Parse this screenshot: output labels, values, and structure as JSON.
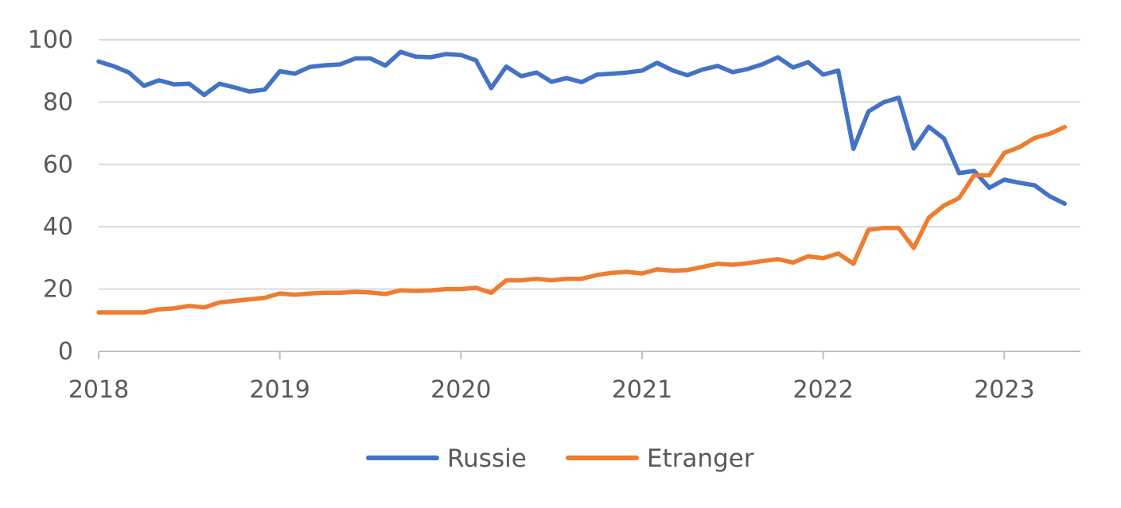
{
  "chart_data": {
    "type": "line",
    "title": "",
    "xlabel": "",
    "ylabel": "",
    "ylim": [
      0,
      100
    ],
    "xlim": [
      2018.0,
      2023.42
    ],
    "y_ticks": [
      0,
      20,
      40,
      60,
      80,
      100
    ],
    "y_tick_labels": [
      "0",
      "20",
      "40",
      "60",
      "80",
      "100"
    ],
    "x_ticks": [
      2018,
      2019,
      2020,
      2021,
      2022,
      2023
    ],
    "x_tick_labels": [
      "2018",
      "2019",
      "2020",
      "2021",
      "2022",
      "2023"
    ],
    "grid": "horizontal",
    "legend_position": "bottom",
    "x": [
      2018.0,
      2018.083,
      2018.167,
      2018.25,
      2018.333,
      2018.417,
      2018.5,
      2018.583,
      2018.667,
      2018.75,
      2018.833,
      2018.917,
      2019.0,
      2019.083,
      2019.167,
      2019.25,
      2019.333,
      2019.417,
      2019.5,
      2019.583,
      2019.667,
      2019.75,
      2019.833,
      2019.917,
      2020.0,
      2020.083,
      2020.167,
      2020.25,
      2020.333,
      2020.417,
      2020.5,
      2020.583,
      2020.667,
      2020.75,
      2020.833,
      2020.917,
      2021.0,
      2021.083,
      2021.167,
      2021.25,
      2021.333,
      2021.417,
      2021.5,
      2021.583,
      2021.667,
      2021.75,
      2021.833,
      2021.917,
      2022.0,
      2022.083,
      2022.167,
      2022.25,
      2022.333,
      2022.417,
      2022.5,
      2022.583,
      2022.667,
      2022.75,
      2022.833,
      2022.917,
      2023.0,
      2023.083,
      2023.167,
      2023.25,
      2023.333
    ],
    "series": [
      {
        "name": "Russie",
        "color": "#4472C4",
        "values": [
          93,
          91.5,
          89.5,
          85.2,
          87,
          85.7,
          85.9,
          82.3,
          85.9,
          84.7,
          83.4,
          84,
          89.9,
          89.1,
          91.3,
          91.8,
          92.1,
          94,
          94,
          91.7,
          96.1,
          94.6,
          94.4,
          95.4,
          95.1,
          93.4,
          84.5,
          91.4,
          88.3,
          89.5,
          86.5,
          87.7,
          86.4,
          88.8,
          89.1,
          89.5,
          90.1,
          92.6,
          90.2,
          88.6,
          90.4,
          91.6,
          89.6,
          90.6,
          92.2,
          94.4,
          91.1,
          92.8,
          88.8,
          90.1,
          65,
          77,
          79.9,
          81.4,
          65.1,
          72.1,
          68.3,
          57.2,
          57.9,
          52.5,
          55.1,
          54.1,
          53.3,
          49.8,
          47.4
        ]
      },
      {
        "name": "Etranger",
        "color": "#ED7D31",
        "values": [
          12.5,
          12.5,
          12.5,
          12.5,
          13.5,
          13.8,
          14.6,
          14.1,
          15.7,
          16.2,
          16.7,
          17.2,
          18.6,
          18.2,
          18.6,
          18.8,
          18.8,
          19.1,
          18.9,
          18.4,
          19.6,
          19.4,
          19.6,
          20,
          20,
          20.4,
          18.8,
          22.8,
          22.8,
          23.3,
          22.8,
          23.3,
          23.3,
          24.5,
          25.2,
          25.5,
          25,
          26.3,
          25.9,
          26.1,
          27.1,
          28.1,
          27.8,
          28.3,
          29,
          29.6,
          28.5,
          30.5,
          29.9,
          31.4,
          28.1,
          39,
          39.6,
          39.6,
          33.2,
          42.9,
          46.8,
          49.2,
          56.5,
          56.5,
          63.7,
          65.5,
          68.5,
          69.8,
          72
        ]
      }
    ]
  }
}
